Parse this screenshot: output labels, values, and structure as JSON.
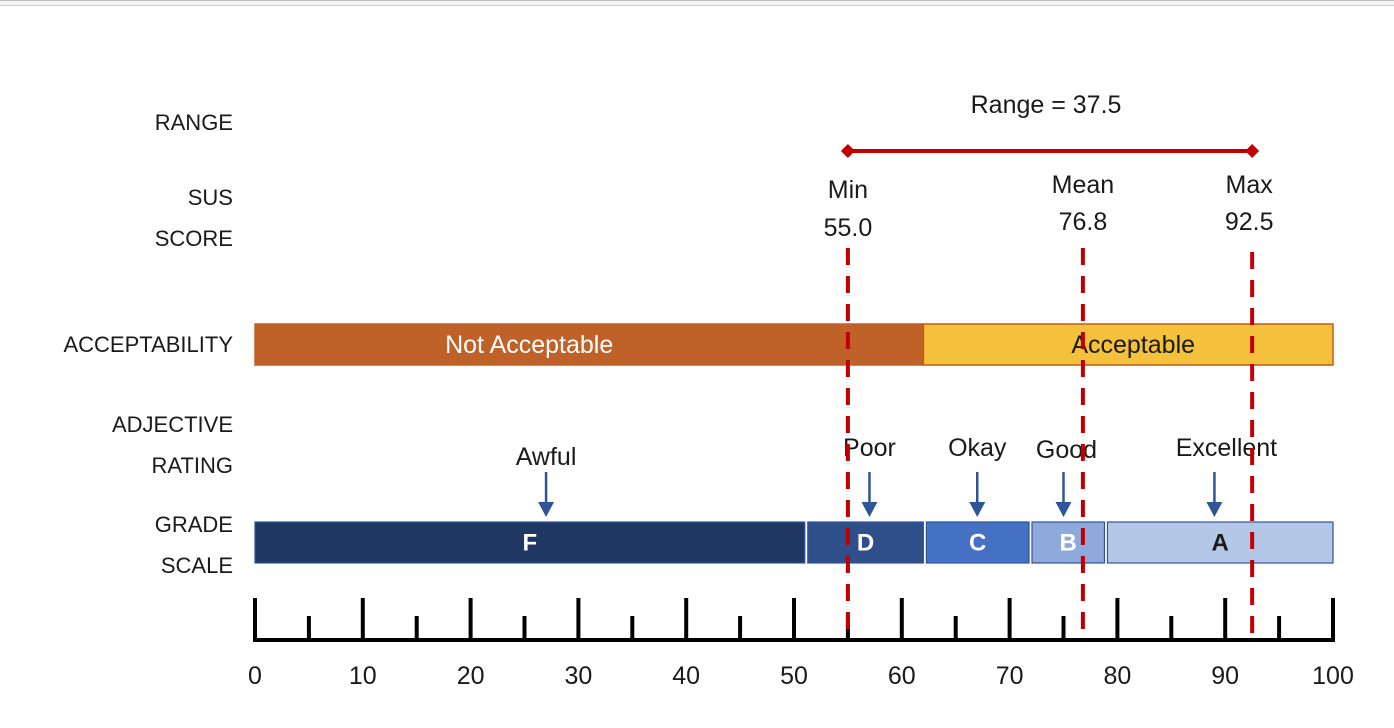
{
  "row_labels": {
    "range": "RANGE",
    "sus_line1": "SUS",
    "sus_line2": "SCORE",
    "acceptability": "ACCEPTABILITY",
    "adjective_line1": "ADJECTIVE",
    "adjective_line2": "RATING",
    "grade_line1": "GRADE",
    "grade_line2": "SCALE"
  },
  "range": {
    "label": "Range = 37.5",
    "from": 55.0,
    "to": 92.5
  },
  "sus_scores": [
    {
      "name": "Min",
      "value": 55.0,
      "value_text": "55.0"
    },
    {
      "name": "Mean",
      "value": 76.8,
      "value_text": "76.8"
    },
    {
      "name": "Max",
      "value": 92.5,
      "value_text": "92.5"
    }
  ],
  "acceptability": [
    {
      "label": "Not Acceptable",
      "from": 0,
      "to": 62,
      "color": "#BE6229",
      "text_color": "#ffffff",
      "border": "#BE6229"
    },
    {
      "label": "Acceptable",
      "from": 62,
      "to": 100,
      "color": "#F4C13C",
      "text_color": "#1a1a1a",
      "border": "#C55A11"
    }
  ],
  "adjectives": [
    {
      "label": "Awful",
      "value": 27
    },
    {
      "label": "Poor",
      "value": 57
    },
    {
      "label": "Okay",
      "value": 67
    },
    {
      "label": "Good",
      "value": 75
    },
    {
      "label": "Excellent",
      "value": 89
    }
  ],
  "grades": [
    {
      "label": "F",
      "from": 0,
      "to": 51,
      "color": "#203764",
      "text_color": "#ffffff"
    },
    {
      "label": "D",
      "from": 51,
      "to": 62,
      "color": "#2F4F8A",
      "text_color": "#ffffff"
    },
    {
      "label": "C",
      "from": 62,
      "to": 71.8,
      "color": "#4471C4",
      "text_color": "#ffffff"
    },
    {
      "label": "B",
      "from": 71.8,
      "to": 78.8,
      "color": "#8EA9DB",
      "text_color": "#ffffff"
    },
    {
      "label": "A",
      "from": 78.8,
      "to": 100,
      "color": "#B4C7E7",
      "text_color": "#1a1a1a"
    }
  ],
  "axis": {
    "min": 0,
    "max": 100,
    "major_step": 10,
    "minor_step": 5,
    "tick_labels": [
      "0",
      "10",
      "20",
      "30",
      "40",
      "50",
      "60",
      "70",
      "80",
      "90",
      "100"
    ]
  },
  "colors": {
    "range_line": "#C00000",
    "marker_line": "#C00000",
    "arrow": "#2F5597",
    "axis": "#000000"
  }
}
